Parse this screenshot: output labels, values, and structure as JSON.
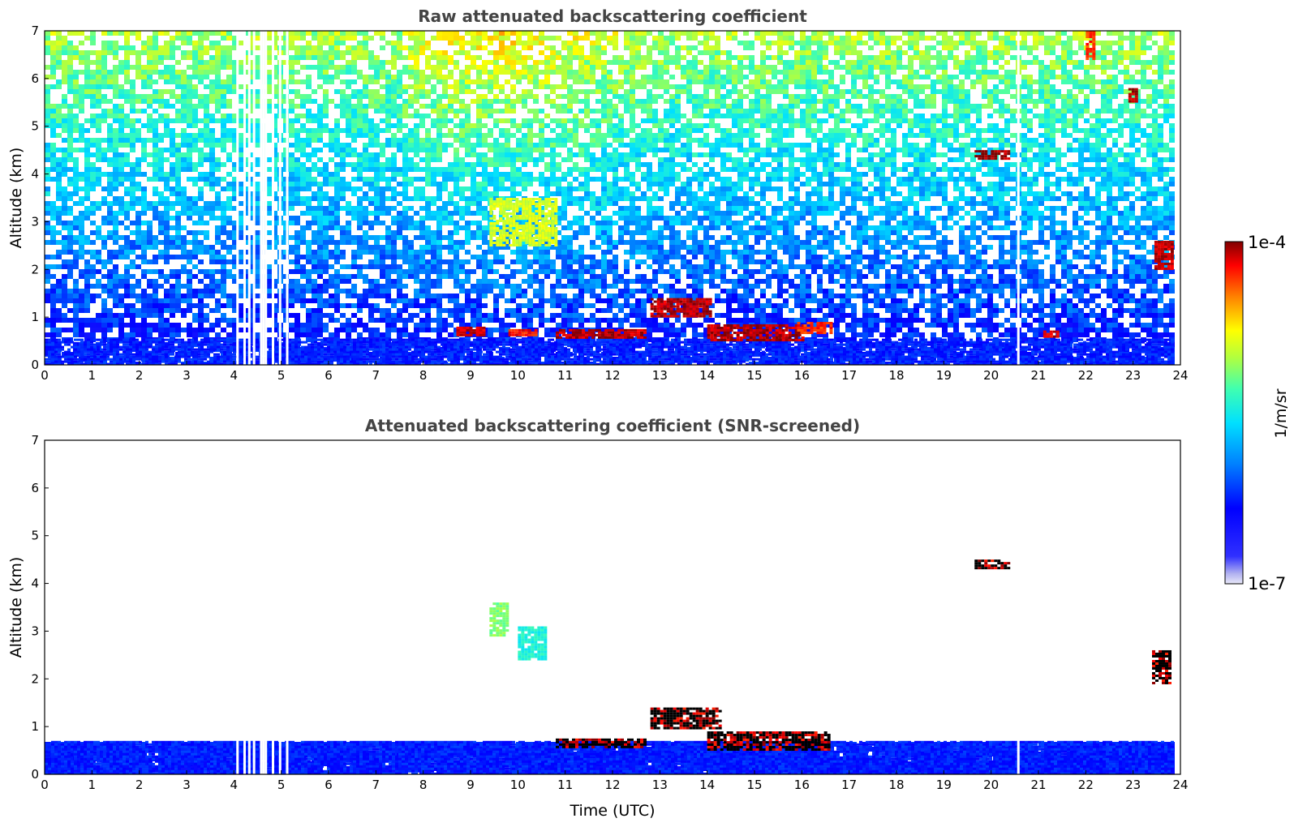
{
  "chart_data": [
    {
      "type": "heatmap",
      "title": "Raw attenuated backscattering coefficient",
      "xlabel": "",
      "ylabel": "Altitude (km)",
      "xlim": [
        0,
        24
      ],
      "ylim": [
        0,
        7
      ],
      "xticks": [
        "0",
        "1",
        "2",
        "3",
        "4",
        "5",
        "6",
        "7",
        "8",
        "9",
        "10",
        "11",
        "12",
        "13",
        "14",
        "15",
        "16",
        "17",
        "18",
        "19",
        "20",
        "21",
        "22",
        "23",
        "24"
      ],
      "yticks": [
        "0",
        "1",
        "2",
        "3",
        "4",
        "5",
        "6",
        "7"
      ],
      "data_extent_hours": 23.8,
      "missing_data_hours": [
        4.05,
        4.2,
        4.3,
        4.4,
        4.55,
        4.6,
        4.65,
        4.8,
        4.95,
        5.1,
        20.55
      ],
      "features": [
        {
          "name": "boundary-layer",
          "x0": 0,
          "x1": 23.8,
          "y0": 0,
          "y1": 0.55,
          "level": 0.25
        },
        {
          "name": "cloud-0.7km-a",
          "x0": 8.7,
          "x1": 9.3,
          "y0": 0.6,
          "y1": 0.8,
          "level": 0.95
        },
        {
          "name": "cloud-0.7km-b",
          "x0": 9.8,
          "x1": 10.4,
          "y0": 0.6,
          "y1": 0.75,
          "level": 0.92
        },
        {
          "name": "cloud-0.6km",
          "x0": 10.8,
          "x1": 12.7,
          "y0": 0.55,
          "y1": 0.75,
          "level": 0.97
        },
        {
          "name": "cloud-1.2km",
          "x0": 12.8,
          "x1": 14.1,
          "y0": 1.0,
          "y1": 1.4,
          "level": 0.97
        },
        {
          "name": "cloud-0.7km-c",
          "x0": 14.0,
          "x1": 16.0,
          "y0": 0.5,
          "y1": 0.85,
          "level": 0.97
        },
        {
          "name": "cloud-0.8km",
          "x0": 15.9,
          "x1": 16.6,
          "y0": 0.65,
          "y1": 0.9,
          "level": 0.9
        },
        {
          "name": "cloud-4.4km",
          "x0": 19.65,
          "x1": 20.4,
          "y0": 4.3,
          "y1": 4.5,
          "level": 0.98
        },
        {
          "name": "cloud-5.7km",
          "x0": 22.9,
          "x1": 23.1,
          "y0": 5.5,
          "y1": 5.8,
          "level": 0.97
        },
        {
          "name": "cloud-6.5km",
          "x0": 22.0,
          "x1": 22.2,
          "y0": 6.4,
          "y1": 7.0,
          "level": 0.9
        },
        {
          "name": "cloud-2.3km",
          "x0": 23.45,
          "x1": 23.8,
          "y0": 2.0,
          "y1": 2.6,
          "level": 0.96
        },
        {
          "name": "cloud-0.65km",
          "x0": 21.1,
          "x1": 21.4,
          "y0": 0.6,
          "y1": 0.72,
          "level": 0.95
        },
        {
          "name": "aerosol-3km",
          "x0": 9.4,
          "x1": 10.8,
          "y0": 2.5,
          "y1": 3.5,
          "level": 0.7
        }
      ]
    },
    {
      "type": "heatmap",
      "title": "Attenuated backscattering coefficient (SNR-screened)",
      "xlabel": "Time (UTC)",
      "ylabel": "Altitude (km)",
      "xlim": [
        0,
        24
      ],
      "ylim": [
        0,
        7
      ],
      "xticks": [
        "0",
        "1",
        "2",
        "3",
        "4",
        "5",
        "6",
        "7",
        "8",
        "9",
        "10",
        "11",
        "12",
        "13",
        "14",
        "15",
        "16",
        "17",
        "18",
        "19",
        "20",
        "21",
        "22",
        "23",
        "24"
      ],
      "yticks": [
        "0",
        "1",
        "2",
        "3",
        "4",
        "5",
        "6",
        "7"
      ],
      "features": [
        {
          "name": "boundary-layer",
          "x0": 0,
          "x1": 23.8,
          "y0": 0,
          "y1": 0.7,
          "level": 0.25
        },
        {
          "name": "cloud-0.6km",
          "x0": 10.8,
          "x1": 12.7,
          "y0": 0.55,
          "y1": 0.75,
          "level": 1.0
        },
        {
          "name": "cloud-1.2km",
          "x0": 12.8,
          "x1": 14.3,
          "y0": 0.95,
          "y1": 1.4,
          "level": 1.0
        },
        {
          "name": "cloud-0.7km",
          "x0": 14.0,
          "x1": 16.6,
          "y0": 0.5,
          "y1": 0.9,
          "level": 1.0
        },
        {
          "name": "aerosol-3.2km",
          "x0": 9.4,
          "x1": 9.8,
          "y0": 2.9,
          "y1": 3.6,
          "level": 0.62
        },
        {
          "name": "aerosol-2.8km",
          "x0": 10.0,
          "x1": 10.6,
          "y0": 2.4,
          "y1": 3.1,
          "level": 0.52
        },
        {
          "name": "cloud-4.4km",
          "x0": 19.65,
          "x1": 20.4,
          "y0": 4.3,
          "y1": 4.5,
          "level": 1.0
        },
        {
          "name": "cloud-2.3km",
          "x0": 23.4,
          "x1": 23.8,
          "y0": 1.9,
          "y1": 2.6,
          "level": 1.0
        }
      ]
    }
  ],
  "colorbar": {
    "label": "1/m/sr",
    "max_label": "1e-4",
    "min_label": "1e-7",
    "colormap": "jet",
    "saturated_color": "#000000"
  }
}
